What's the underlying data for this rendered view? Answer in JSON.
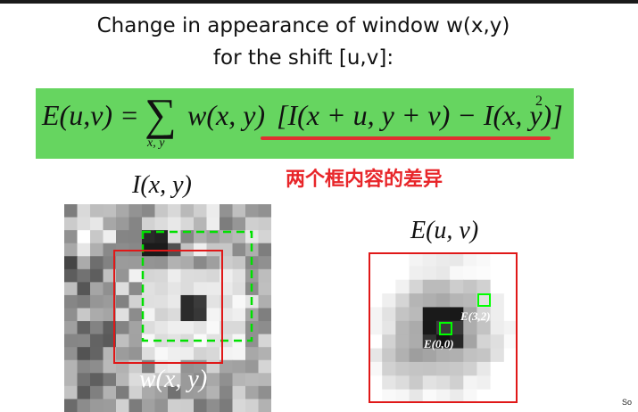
{
  "slide": {
    "title_line1": "Change in appearance of window w(x,y)",
    "title_line2": "for the shift [u,v]:",
    "formula": {
      "lhs": "E(u,v) =",
      "sum_symbol": "∑",
      "sum_subscript": "x, y",
      "window_term": "w(x, y)",
      "bracket_term": "[I(x + u, y + v) − I(x, y)]",
      "exponent": "2"
    },
    "annotation_cn": "两个框内容的差异",
    "image_left_label": "I(x, y)",
    "window_label": "w(x, y)",
    "image_right_label": "E(u, v)",
    "marker_labels": [
      "E(3,2)",
      "E(0,0)"
    ],
    "footer_text": "So"
  },
  "colors": {
    "formula_bg": "#66d560",
    "accent_red": "#e8262a",
    "dashed_green": "#00e000",
    "marker_green": "#00ff00"
  }
}
